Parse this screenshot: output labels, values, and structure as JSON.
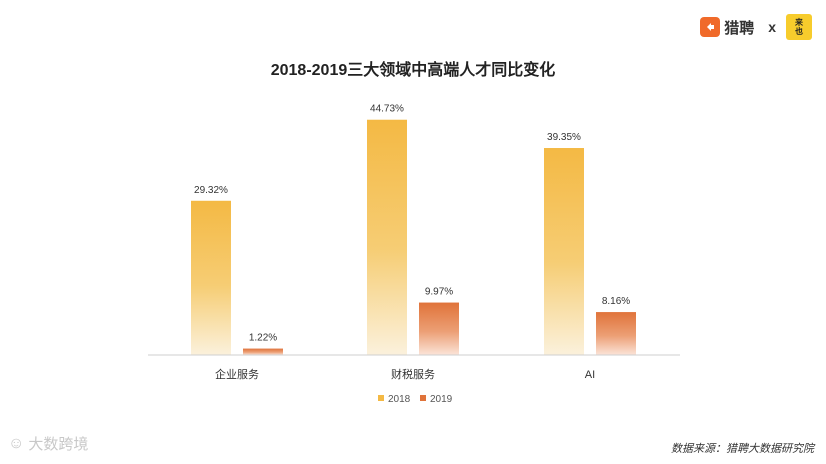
{
  "header": {
    "liepin_logo": "猎聘",
    "separator": "x",
    "laiye_logo_top": "来",
    "laiye_logo_bottom": "也"
  },
  "chart_data": {
    "type": "bar",
    "title": "2018-2019三大领域中高端人才同比变化",
    "categories": [
      "企业服务",
      "财税服务",
      "AI"
    ],
    "series": [
      {
        "name": "2018",
        "values": [
          29.32,
          44.73,
          39.35
        ],
        "labels": [
          "29.32%",
          "44.73%",
          "39.35%"
        ],
        "color": "#f4b944"
      },
      {
        "name": "2019",
        "values": [
          1.22,
          9.97,
          8.16
        ],
        "labels": [
          "1.22%",
          "9.97%",
          "8.16%"
        ],
        "color": "#e0733a"
      }
    ],
    "ylim": [
      0,
      50
    ],
    "grid": false,
    "legend": "bottom-center"
  },
  "footer": {
    "watermark": "大数跨境",
    "source": "数据来源：猎聘大数据研究院"
  }
}
